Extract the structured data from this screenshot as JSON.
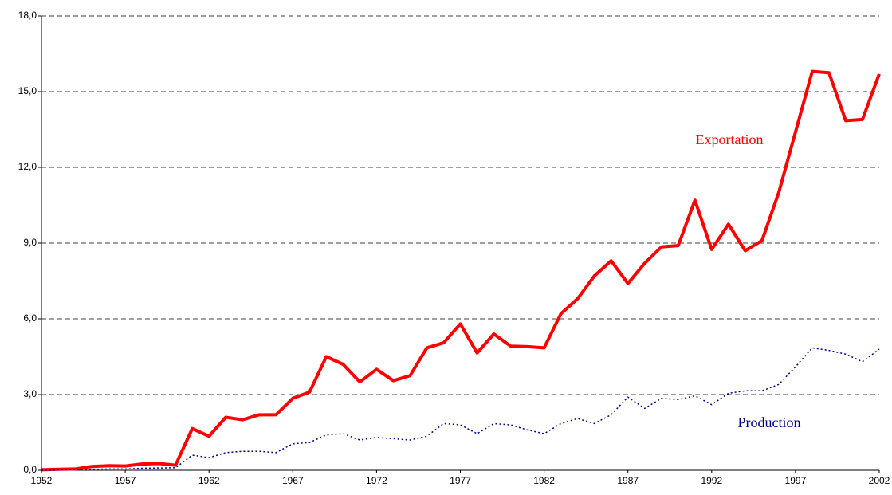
{
  "chart_data": {
    "type": "line",
    "x": [
      1952,
      1953,
      1954,
      1955,
      1956,
      1957,
      1958,
      1959,
      1960,
      1961,
      1962,
      1963,
      1964,
      1965,
      1966,
      1967,
      1968,
      1969,
      1970,
      1971,
      1972,
      1973,
      1974,
      1975,
      1976,
      1977,
      1978,
      1979,
      1980,
      1981,
      1982,
      1983,
      1984,
      1985,
      1986,
      1987,
      1988,
      1989,
      1990,
      1991,
      1992,
      1993,
      1994,
      1995,
      1996,
      1997,
      1998,
      1999,
      2000,
      2001,
      2002
    ],
    "series": [
      {
        "name": "Exportation",
        "color": "#ff0000",
        "values": [
          0.02,
          0.04,
          0.05,
          0.15,
          0.18,
          0.17,
          0.25,
          0.27,
          0.2,
          1.65,
          1.35,
          2.1,
          2.0,
          2.2,
          2.2,
          2.85,
          3.1,
          4.5,
          4.2,
          3.5,
          4.0,
          3.55,
          3.75,
          4.85,
          5.05,
          5.8,
          4.65,
          5.4,
          4.92,
          4.9,
          4.85,
          6.2,
          6.8,
          7.7,
          8.3,
          7.4,
          8.2,
          8.85,
          8.9,
          10.7,
          8.75,
          9.75,
          8.7,
          9.1,
          11.0,
          13.4,
          15.8,
          15.75,
          13.85,
          13.9,
          15.7
        ]
      },
      {
        "name": "Production",
        "color": "#000080",
        "values": [
          0.0,
          0.01,
          0.02,
          0.04,
          0.05,
          0.05,
          0.08,
          0.09,
          0.1,
          0.6,
          0.5,
          0.7,
          0.75,
          0.75,
          0.7,
          1.05,
          1.1,
          1.4,
          1.45,
          1.2,
          1.3,
          1.25,
          1.2,
          1.35,
          1.85,
          1.8,
          1.45,
          1.85,
          1.8,
          1.6,
          1.45,
          1.85,
          2.05,
          1.85,
          2.2,
          2.9,
          2.45,
          2.85,
          2.8,
          2.95,
          2.6,
          3.05,
          3.15,
          3.15,
          3.4,
          4.1,
          4.85,
          4.75,
          4.6,
          4.3,
          4.8
        ]
      }
    ],
    "xlim": [
      1952,
      2002
    ],
    "xticks": [
      1952,
      1957,
      1962,
      1967,
      1972,
      1977,
      1982,
      1987,
      1992,
      1997,
      2002
    ],
    "ylim": [
      0,
      18
    ],
    "yticks": [
      {
        "value": 0,
        "label": "0,0"
      },
      {
        "value": 3,
        "label": "3,0"
      },
      {
        "value": 6,
        "label": "6,0"
      },
      {
        "value": 9,
        "label": "9,0"
      },
      {
        "value": 12,
        "label": "12,0"
      },
      {
        "value": 15,
        "label": "15,0"
      },
      {
        "value": 18,
        "label": "18,0"
      }
    ],
    "grid": true
  }
}
